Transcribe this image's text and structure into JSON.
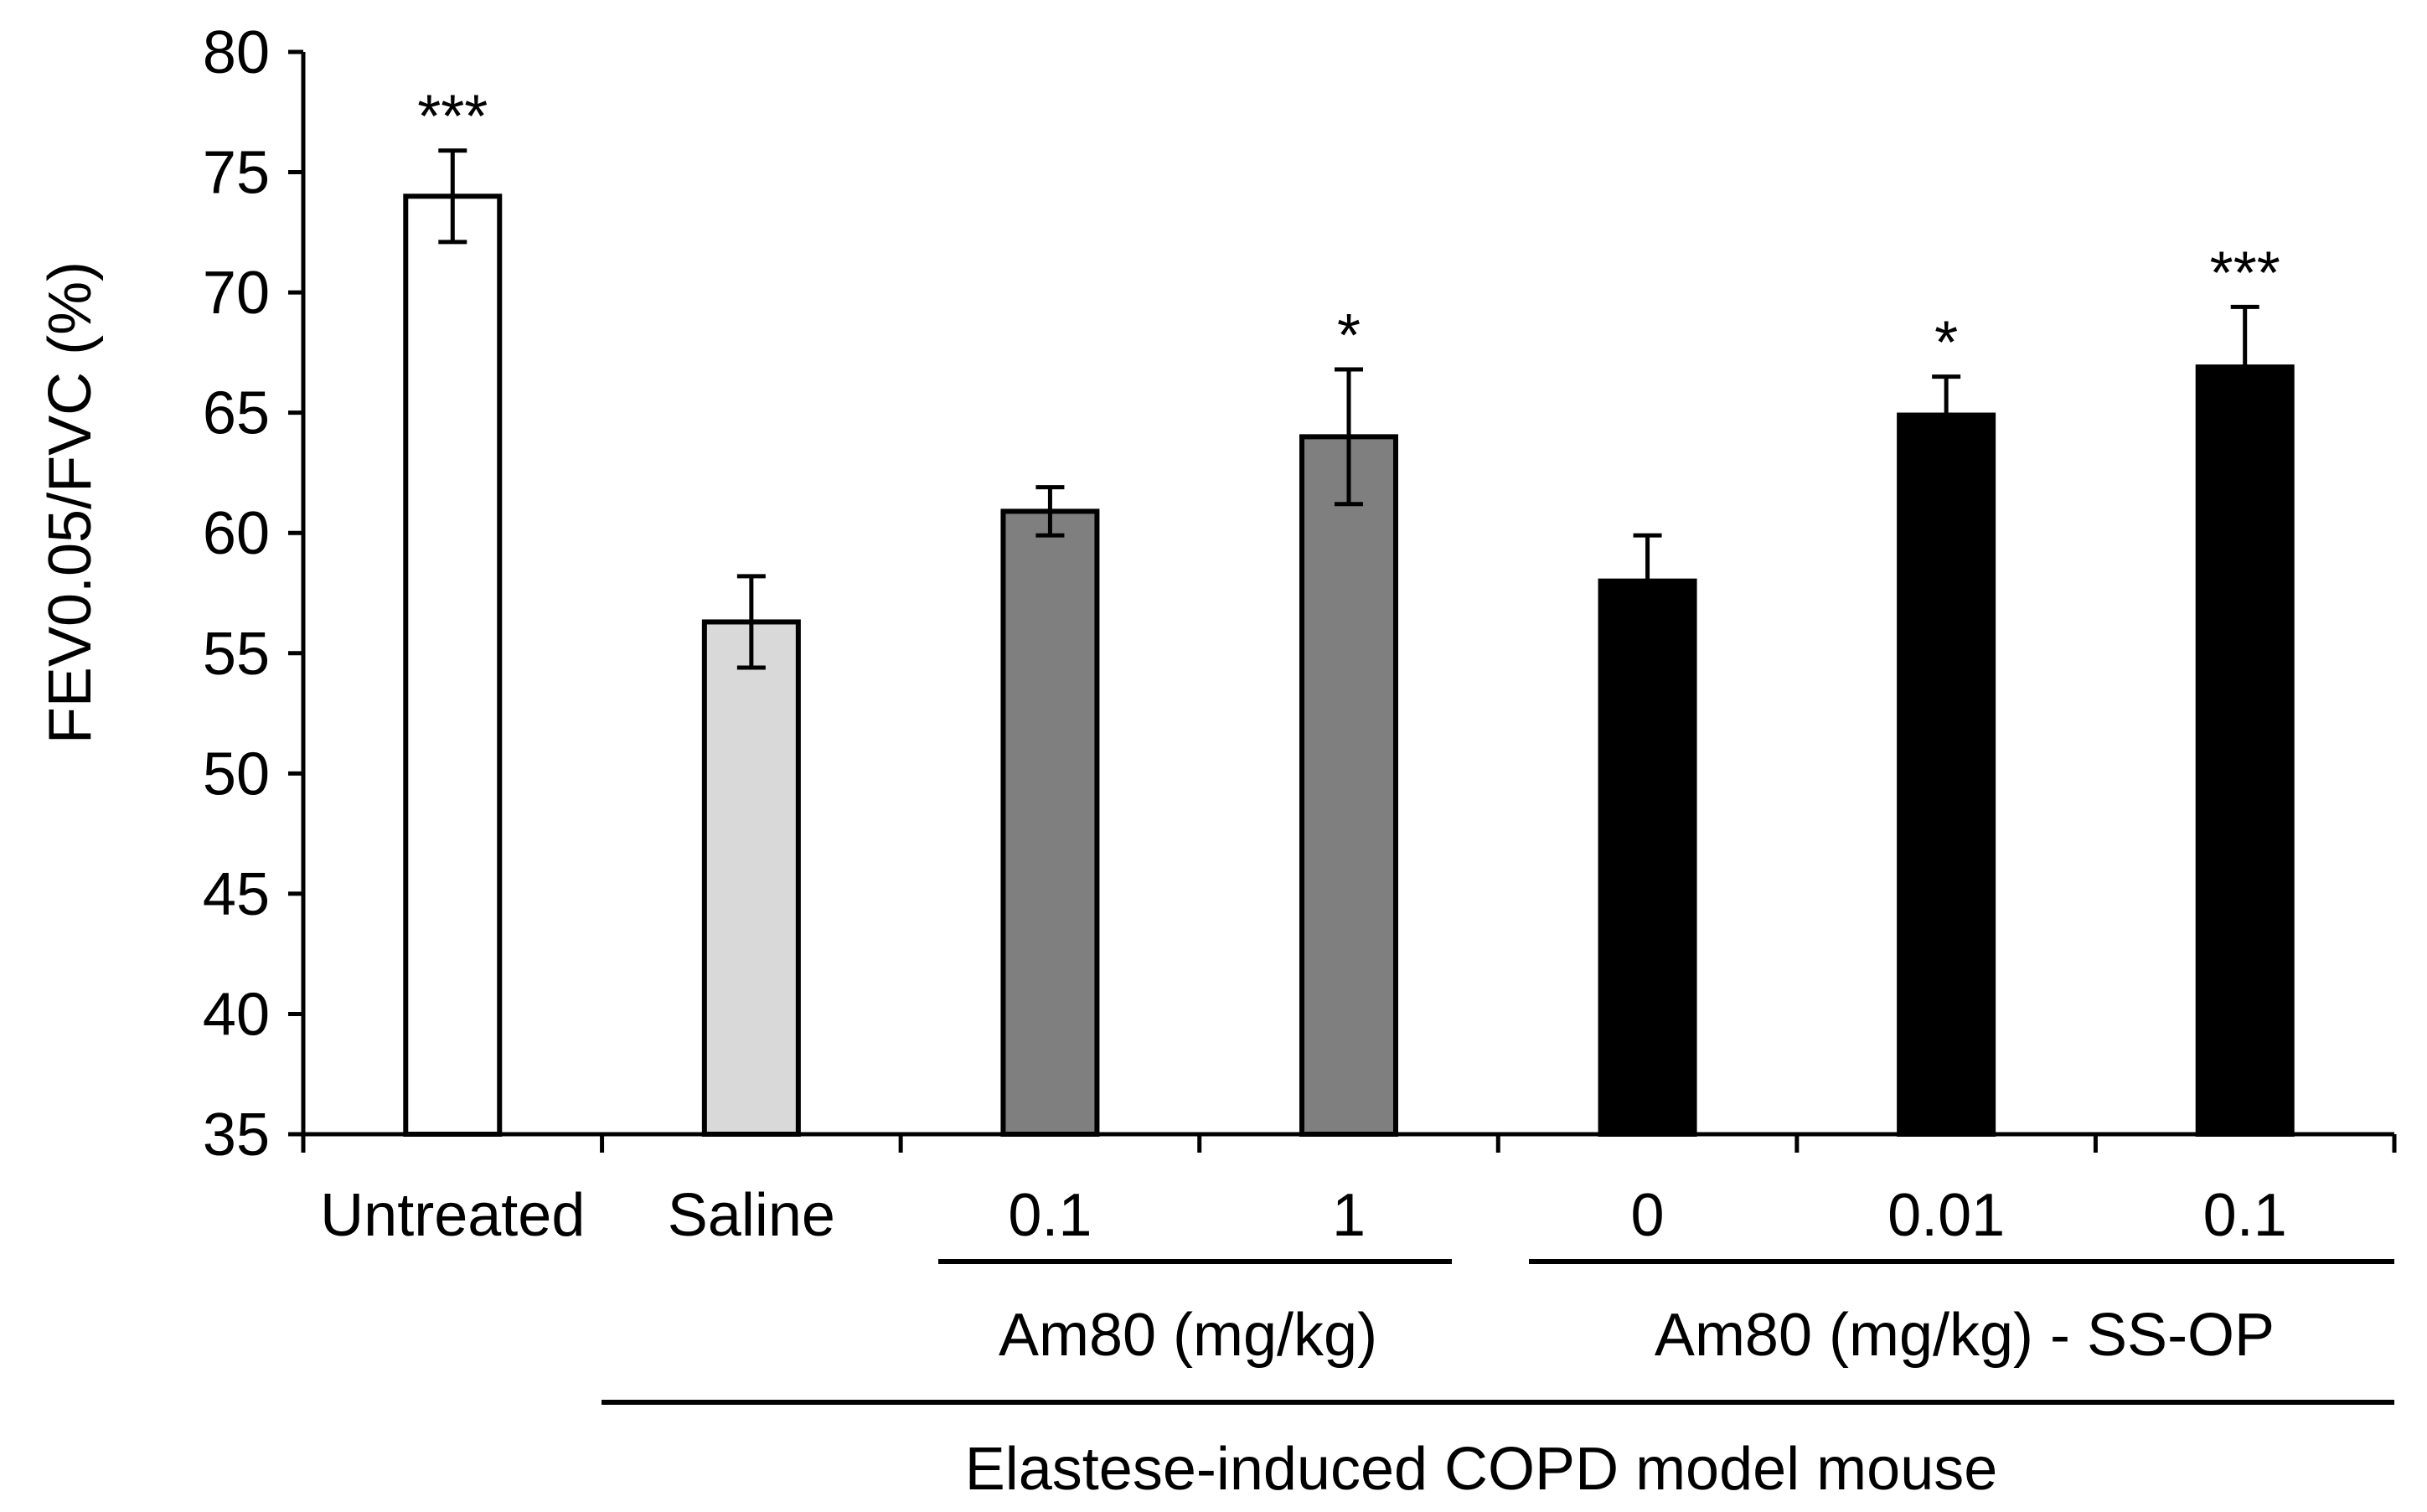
{
  "chart_data": {
    "type": "bar",
    "title": "",
    "ylabel": "FEV0.05/FVC (%)",
    "xlabel": "Elastese-induced COPD model mouse",
    "ylim": [
      35,
      80
    ],
    "yticks": [
      35,
      40,
      45,
      50,
      55,
      60,
      65,
      70,
      75,
      80
    ],
    "categories": [
      "Untreated",
      "Saline",
      "0.1",
      "1",
      "0",
      "0.01",
      "0.1"
    ],
    "values": [
      74.0,
      56.3,
      60.9,
      64.0,
      58.0,
      64.9,
      66.9
    ],
    "errors": [
      1.9,
      1.9,
      1.0,
      2.8,
      1.9,
      1.6,
      2.5
    ],
    "significance": [
      "***",
      "",
      "",
      "*",
      "",
      "*",
      "***"
    ],
    "fills": [
      "#ffffff",
      "#d9d9d9",
      "#7f7f7f",
      "#7f7f7f",
      "#000000",
      "#000000",
      "#000000"
    ],
    "group_labels": [
      "Am80 (mg/kg)",
      "Am80 (mg/kg) - SS-OP"
    ]
  }
}
